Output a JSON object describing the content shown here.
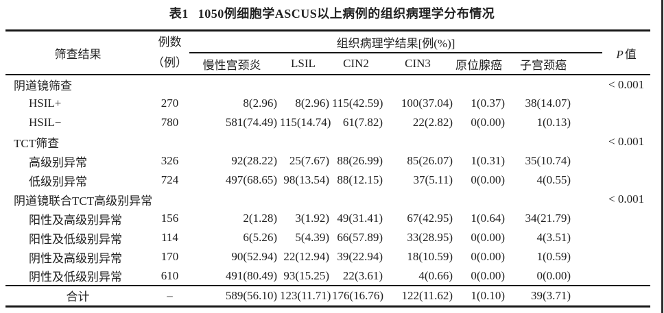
{
  "colors": {
    "text": "#212121",
    "rule": "#161616",
    "scan_edge": "#2e2e2e",
    "background": "#ffffff"
  },
  "title": {
    "label": "表1",
    "text": "1050例细胞学ASCUS以上病例的组织病理学分布情况"
  },
  "header": {
    "screening": "筛查结果",
    "cases_line1": "例数",
    "cases_line2": "（例）",
    "pathology_group": "组织病理学结果[例(%)]",
    "subcolumns": [
      "慢性宫颈炎",
      "LSIL",
      "CIN2",
      "CIN3",
      "原位腺癌",
      "子宫颈癌"
    ],
    "p_symbol": "P",
    "p_suffix": "值"
  },
  "rows": [
    {
      "type": "group",
      "label": "阴道镜筛查",
      "cases": "",
      "values": [
        "",
        "",
        "",
        "",
        "",
        ""
      ],
      "p": "< 0.001"
    },
    {
      "type": "data",
      "label": "HSIL+",
      "cases": "270",
      "values": [
        "8(2.96)",
        "8(2.96)",
        "115(42.59)",
        "100(37.04)",
        "1(0.37)",
        "38(14.07)"
      ],
      "p": ""
    },
    {
      "type": "data",
      "label": "HSIL−",
      "cases": "780",
      "values": [
        "581(74.49)",
        "115(14.74)",
        "61(7.82)",
        "22(2.82)",
        "0(0.00)",
        "1(0.13)"
      ],
      "p": ""
    },
    {
      "type": "group",
      "label": "TCT筛查",
      "cases": "",
      "values": [
        "",
        "",
        "",
        "",
        "",
        ""
      ],
      "p": "< 0.001"
    },
    {
      "type": "data",
      "label": "高级别异常",
      "cases": "326",
      "values": [
        "92(28.22)",
        "25(7.67)",
        "88(26.99)",
        "85(26.07)",
        "1(0.31)",
        "35(10.74)"
      ],
      "p": ""
    },
    {
      "type": "data",
      "label": "低级别异常",
      "cases": "724",
      "values": [
        "497(68.65)",
        "98(13.54)",
        "88(12.15)",
        "37(5.11)",
        "0(0.00)",
        "4(0.55)"
      ],
      "p": ""
    },
    {
      "type": "group",
      "label": "阴道镜联合TCT高级别异常",
      "cases": "",
      "values": [
        "",
        "",
        "",
        "",
        "",
        ""
      ],
      "p": "< 0.001"
    },
    {
      "type": "data",
      "label": "阳性及高级别异常",
      "cases": "156",
      "values": [
        "2(1.28)",
        "3(1.92)",
        "49(31.41)",
        "67(42.95)",
        "1(0.64)",
        "34(21.79)"
      ],
      "p": ""
    },
    {
      "type": "data",
      "label": "阳性及低级别异常",
      "cases": "114",
      "values": [
        "6(5.26)",
        "5(4.39)",
        "66(57.89)",
        "33(28.95)",
        "0(0.00)",
        "4(3.51)"
      ],
      "p": ""
    },
    {
      "type": "data",
      "label": "阴性及高级别异常",
      "cases": "170",
      "values": [
        "90(52.94)",
        "22(12.94)",
        "39(22.94)",
        "18(10.59)",
        "0(0.00)",
        "1(0.59)"
      ],
      "p": ""
    },
    {
      "type": "data",
      "label": "阴性及低级别异常",
      "cases": "610",
      "values": [
        "491(80.49)",
        "93(15.25)",
        "22(3.61)",
        "4(0.66)",
        "0(0.00)",
        "0(0.00)"
      ],
      "p": ""
    },
    {
      "type": "total",
      "label": "合计",
      "cases": "–",
      "values": [
        "589(56.10)",
        "123(11.71)",
        "176(16.76)",
        "122(11.62)",
        "1(0.10)",
        "39(3.71)"
      ],
      "p": ""
    }
  ]
}
